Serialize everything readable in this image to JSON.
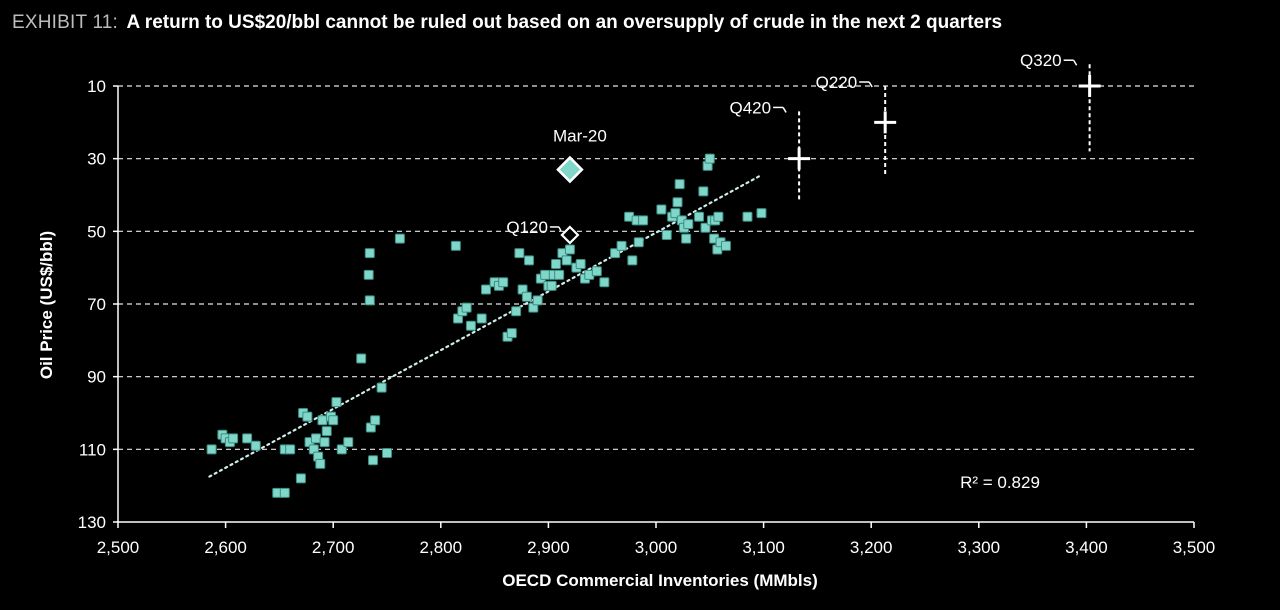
{
  "header": {
    "exhibit": "EXHIBIT 11:",
    "title": "A return to US$20/bbl cannot be ruled out based on an oversupply of crude in the next 2 quarters"
  },
  "colors": {
    "background": "#000000",
    "points": "#7fd6c9",
    "point_edge": "#3c8c80",
    "trendline": "#cfeee9",
    "grid": "#e6e6e6",
    "highlight": "#ffffff"
  },
  "chart_data": {
    "type": "scatter",
    "title": "",
    "xlabel": "OECD Commercial Inventories (MMbls)",
    "ylabel": "Oil Price (US$/bbl)",
    "xlim": [
      2500,
      3500
    ],
    "ylim": [
      130,
      10
    ],
    "y_inverted": true,
    "x_ticks": [
      2500,
      2600,
      2700,
      2800,
      2900,
      3000,
      3100,
      3200,
      3300,
      3400,
      3500
    ],
    "x_tick_labels": [
      "2,500",
      "2,600",
      "2,700",
      "2,800",
      "2,900",
      "3,000",
      "3,100",
      "3,200",
      "3,300",
      "3,400",
      "3,500"
    ],
    "y_ticks": [
      10,
      30,
      50,
      70,
      90,
      110,
      130
    ],
    "y_tick_labels": [
      "10",
      "30",
      "50",
      "70",
      "90",
      "110",
      "130"
    ],
    "grid": "horizontal dashed",
    "r_squared_label": "R² = 0.829",
    "trendline": {
      "x": [
        2585,
        3098
      ],
      "y": [
        117.5,
        34.5
      ]
    },
    "series": [
      {
        "name": "",
        "points": [
          [
            2587,
            110
          ],
          [
            2597,
            106
          ],
          [
            2600,
            107
          ],
          [
            2604,
            108
          ],
          [
            2607,
            107
          ],
          [
            2620,
            107
          ],
          [
            2628,
            109
          ],
          [
            2655,
            110
          ],
          [
            2660,
            110
          ],
          [
            2648,
            122
          ],
          [
            2655,
            122
          ],
          [
            2670,
            118
          ],
          [
            2672,
            100
          ],
          [
            2676,
            101
          ],
          [
            2678,
            108
          ],
          [
            2682,
            110
          ],
          [
            2684,
            107
          ],
          [
            2686,
            112
          ],
          [
            2688,
            114
          ],
          [
            2690,
            102
          ],
          [
            2692,
            108
          ],
          [
            2694,
            105
          ],
          [
            2698,
            101
          ],
          [
            2700,
            102
          ],
          [
            2703,
            97
          ],
          [
            2708,
            110
          ],
          [
            2714,
            108
          ],
          [
            2726,
            85
          ],
          [
            2733,
            62
          ],
          [
            2734,
            69
          ],
          [
            2734,
            56
          ],
          [
            2735,
            104
          ],
          [
            2737,
            113
          ],
          [
            2739,
            102
          ],
          [
            2745,
            93
          ],
          [
            2750,
            111
          ],
          [
            2762,
            52
          ],
          [
            2814,
            54
          ],
          [
            2816,
            74
          ],
          [
            2820,
            72
          ],
          [
            2824,
            71
          ],
          [
            2828,
            76
          ],
          [
            2838,
            74
          ],
          [
            2842,
            66
          ],
          [
            2850,
            64
          ],
          [
            2854,
            65
          ],
          [
            2858,
            64
          ],
          [
            2862,
            79
          ],
          [
            2866,
            78
          ],
          [
            2870,
            72
          ],
          [
            2873,
            56
          ],
          [
            2876,
            66
          ],
          [
            2880,
            68
          ],
          [
            2882,
            58
          ],
          [
            2886,
            71
          ],
          [
            2890,
            69
          ],
          [
            2893,
            63
          ],
          [
            2897,
            62
          ],
          [
            2900,
            65
          ],
          [
            2903,
            65
          ],
          [
            2905,
            62
          ],
          [
            2907,
            59
          ],
          [
            2910,
            62
          ],
          [
            2913,
            56
          ],
          [
            2917,
            58
          ],
          [
            2920,
            55
          ],
          [
            2926,
            60
          ],
          [
            2930,
            59
          ],
          [
            2934,
            63
          ],
          [
            2938,
            62
          ],
          [
            2945,
            61
          ],
          [
            2952,
            64
          ],
          [
            2962,
            56
          ],
          [
            2968,
            54
          ],
          [
            2975,
            46
          ],
          [
            2978,
            58
          ],
          [
            2982,
            47
          ],
          [
            2984,
            53
          ],
          [
            2988,
            47
          ],
          [
            3005,
            44
          ],
          [
            3010,
            51
          ],
          [
            3015,
            46
          ],
          [
            3018,
            45
          ],
          [
            3020,
            42
          ],
          [
            3022,
            37
          ],
          [
            3024,
            47
          ],
          [
            3026,
            49
          ],
          [
            3028,
            52
          ],
          [
            3030,
            48
          ],
          [
            3040,
            46
          ],
          [
            3044,
            39
          ],
          [
            3046,
            49
          ],
          [
            3048,
            32
          ],
          [
            3050,
            30
          ],
          [
            3052,
            47
          ],
          [
            3054,
            52
          ],
          [
            3055,
            47
          ],
          [
            3057,
            55
          ],
          [
            3058,
            46
          ],
          [
            3060,
            53
          ],
          [
            3065,
            54
          ],
          [
            3085,
            46
          ],
          [
            3098,
            45
          ]
        ]
      }
    ],
    "highlights": [
      {
        "label": "Mar-20",
        "x": 2920,
        "y": 33,
        "marker": "diamond-filled"
      },
      {
        "label": "Q120",
        "x": 2920,
        "y": 51,
        "marker": "diamond-open"
      }
    ],
    "forecasts": [
      {
        "label": "Q420",
        "x": 3133,
        "y": 30,
        "y_low": 42,
        "y_high": 17
      },
      {
        "label": "Q220",
        "x": 3213,
        "y": 20,
        "y_low": 35,
        "y_high": 10
      },
      {
        "label": "Q320",
        "x": 3403,
        "y": 10,
        "y_low": 28,
        "y_high": 4
      }
    ]
  }
}
